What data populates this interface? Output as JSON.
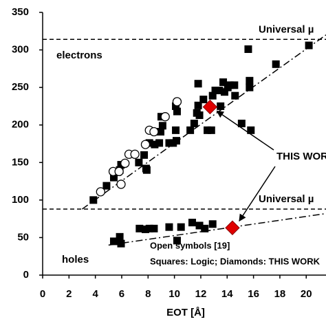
{
  "chart_data": {
    "type": "scatter",
    "x_label": "EOT [Å]",
    "xlim": [
      0,
      21.5
    ],
    "xticks": [
      0,
      2,
      4,
      6,
      8,
      10,
      12,
      14,
      16,
      18,
      20
    ],
    "ylim": [
      0,
      350
    ],
    "yticks": [
      0,
      50,
      100,
      150,
      200,
      250,
      300,
      350
    ],
    "series": [
      {
        "name": "Squares: Logic",
        "marker": "square",
        "color": "#000000",
        "x": [
          3.85,
          4.85,
          5.4,
          5.85,
          5.95,
          7.3,
          7.7,
          7.85,
          7.9,
          8.1,
          8.5,
          8.85,
          8.95,
          9.1,
          9.0,
          9.6,
          9.9,
          10.15,
          10.1,
          10.2,
          10.1,
          11.2,
          11.5,
          11.7,
          11.8,
          11.9,
          11.8,
          12.2,
          12.5,
          12.8,
          12.9,
          13.1,
          13.4,
          13.7,
          13.5,
          13.8,
          14.05,
          14.2,
          14.55,
          14.6,
          15.1,
          15.7,
          15.7,
          15.8,
          15.6,
          17.7,
          20.2,
          5.4,
          5.85,
          5.95,
          7.35,
          7.8,
          8.1,
          8.45,
          9.6,
          10.2,
          10.5,
          11.35,
          11.9,
          12.3,
          12.9
        ],
        "values": [
          100,
          119,
          130,
          140,
          147,
          150,
          160,
          142,
          140,
          176,
          174,
          176,
          191,
          199,
          211,
          176,
          176,
          179,
          193,
          218,
          225,
          193,
          202,
          216,
          226,
          213,
          255,
          234,
          193,
          193,
          239,
          246,
          246,
          257,
          225,
          244,
          250,
          253,
          253,
          239,
          202,
          250,
          259,
          193,
          301,
          281,
          306,
          45,
          51,
          42,
          62,
          61,
          62,
          62,
          64,
          46,
          64,
          70,
          66,
          62,
          68
        ]
      },
      {
        "name": "Open symbols [19]",
        "marker": "circle",
        "color": "#000000",
        "x": [
          4.4,
          5.35,
          5.8,
          5.95,
          6.25,
          6.55,
          7.0,
          7.8,
          8.1,
          8.45,
          9.3,
          10.2
        ],
        "values": [
          111,
          138,
          138,
          121,
          149,
          161,
          161,
          174,
          193,
          191,
          211,
          231
        ]
      },
      {
        "name": "Diamonds: THIS WORK",
        "marker": "diamond",
        "color": "#e00000",
        "x": [
          12.7,
          14.4
        ],
        "values": [
          224,
          63
        ]
      }
    ],
    "reference_lines": [
      {
        "label": "Universal µ",
        "y": 314
      },
      {
        "label": "Universal µ",
        "y": 88
      }
    ],
    "trend_lines": [
      {
        "x": [
          3,
          21.5
        ],
        "values": [
          88,
          320
        ]
      },
      {
        "x": [
          5,
          21.5
        ],
        "values": [
          40,
          82
        ]
      }
    ],
    "annotations": [
      "electrons",
      "holes",
      "THIS WORK",
      "Open symbols [19]",
      "Squares: Logic;  Diamonds: THIS WORK"
    ]
  }
}
